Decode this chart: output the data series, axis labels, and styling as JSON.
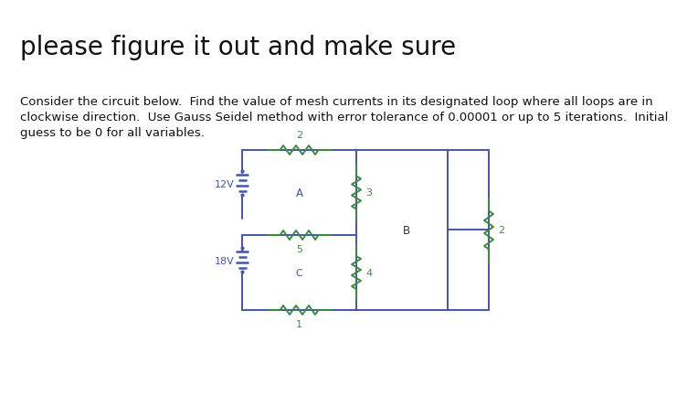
{
  "title": "please figure it out and make sure",
  "para_line1": "Consider the circuit below.  Find the value of mesh currents in its designated loop where all loops are in",
  "para_line2": "clockwise direction.  Use Gauss Seidel method with error tolerance of 0.00001 or up to 5 iterations.  Initial",
  "para_line3": "guess to be 0 for all variables.",
  "title_fontsize": 20,
  "para_fontsize": 9.5,
  "bg_color": "#ffffff",
  "wire_color": "#4455aa",
  "resistor_color": "#3a8c3a",
  "label_color": "#4455aa",
  "res_label_color": "#3a8c3a",
  "loop_label_color": "#4455aa"
}
